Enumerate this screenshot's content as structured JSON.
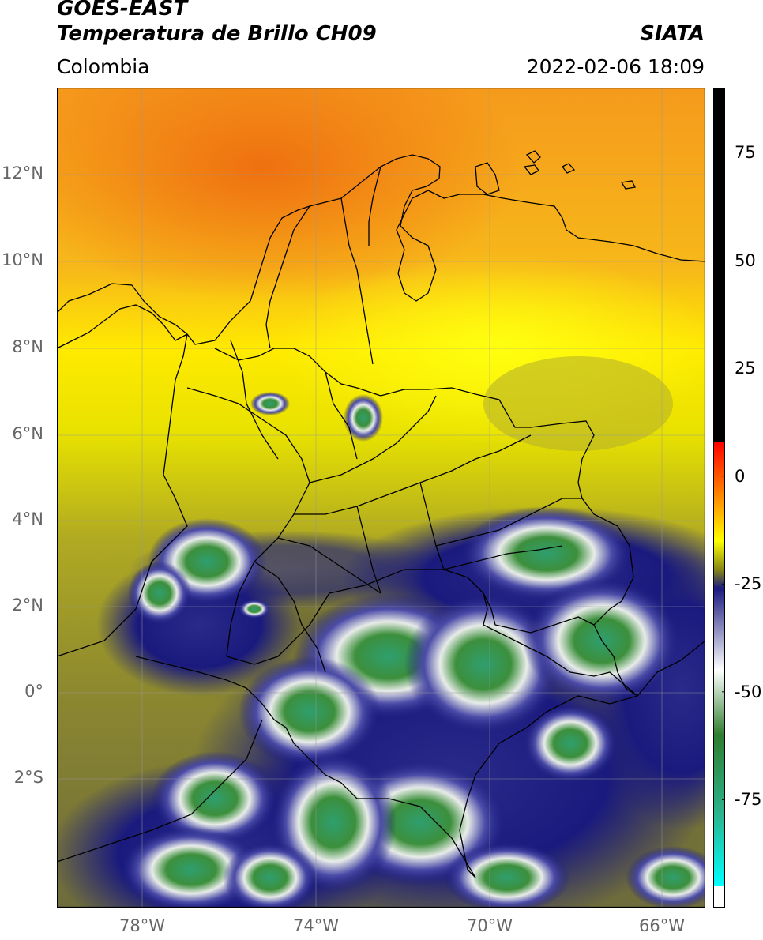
{
  "header": {
    "title_line1": "GOES-EAST",
    "title_line2": "Temperatura de Brillo CH09",
    "agency": "SIATA",
    "region": "Colombia",
    "datetime": "2022-02-06 18:09"
  },
  "map": {
    "lat_ticks": [
      "12°N",
      "10°N",
      "8°N",
      "6°N",
      "4°N",
      "2°N",
      "0°",
      "2°S"
    ],
    "lon_ticks": [
      "78°W",
      "74°W",
      "70°W",
      "66°W"
    ],
    "colors": {
      "warm_orange": "#f7931e",
      "yellow": "#ffff00",
      "olive": "#8a8a30",
      "navy": "#1a1a7e",
      "white": "#f2f2f2",
      "green": "#3f9a3f",
      "teal": "#2cb38c",
      "border_line": "#000000",
      "gridline": "#999999"
    }
  },
  "colorbar": {
    "ticks": [
      "75",
      "50",
      "25",
      "0",
      "-25",
      "-50",
      "-75"
    ],
    "tick_values": [
      75,
      50,
      25,
      0,
      -25,
      -50,
      -75
    ],
    "range": [
      -100,
      90
    ],
    "stops": [
      {
        "value": 90,
        "color": "#000000"
      },
      {
        "value": 8,
        "color": "#000000"
      },
      {
        "value": 7.9,
        "color": "#ff0000"
      },
      {
        "value": -5,
        "color": "#ff8c00"
      },
      {
        "value": -15,
        "color": "#ffff00"
      },
      {
        "value": -22,
        "color": "#80801a"
      },
      {
        "value": -26,
        "color": "#1a1a80"
      },
      {
        "value": -45,
        "color": "#ffffff"
      },
      {
        "value": -60,
        "color": "#2e7d2e"
      },
      {
        "value": -78,
        "color": "#2cb38c"
      },
      {
        "value": -95,
        "color": "#00ffff"
      },
      {
        "value": -95.1,
        "color": "#ffffff"
      },
      {
        "value": -100,
        "color": "#ffffff"
      }
    ]
  }
}
